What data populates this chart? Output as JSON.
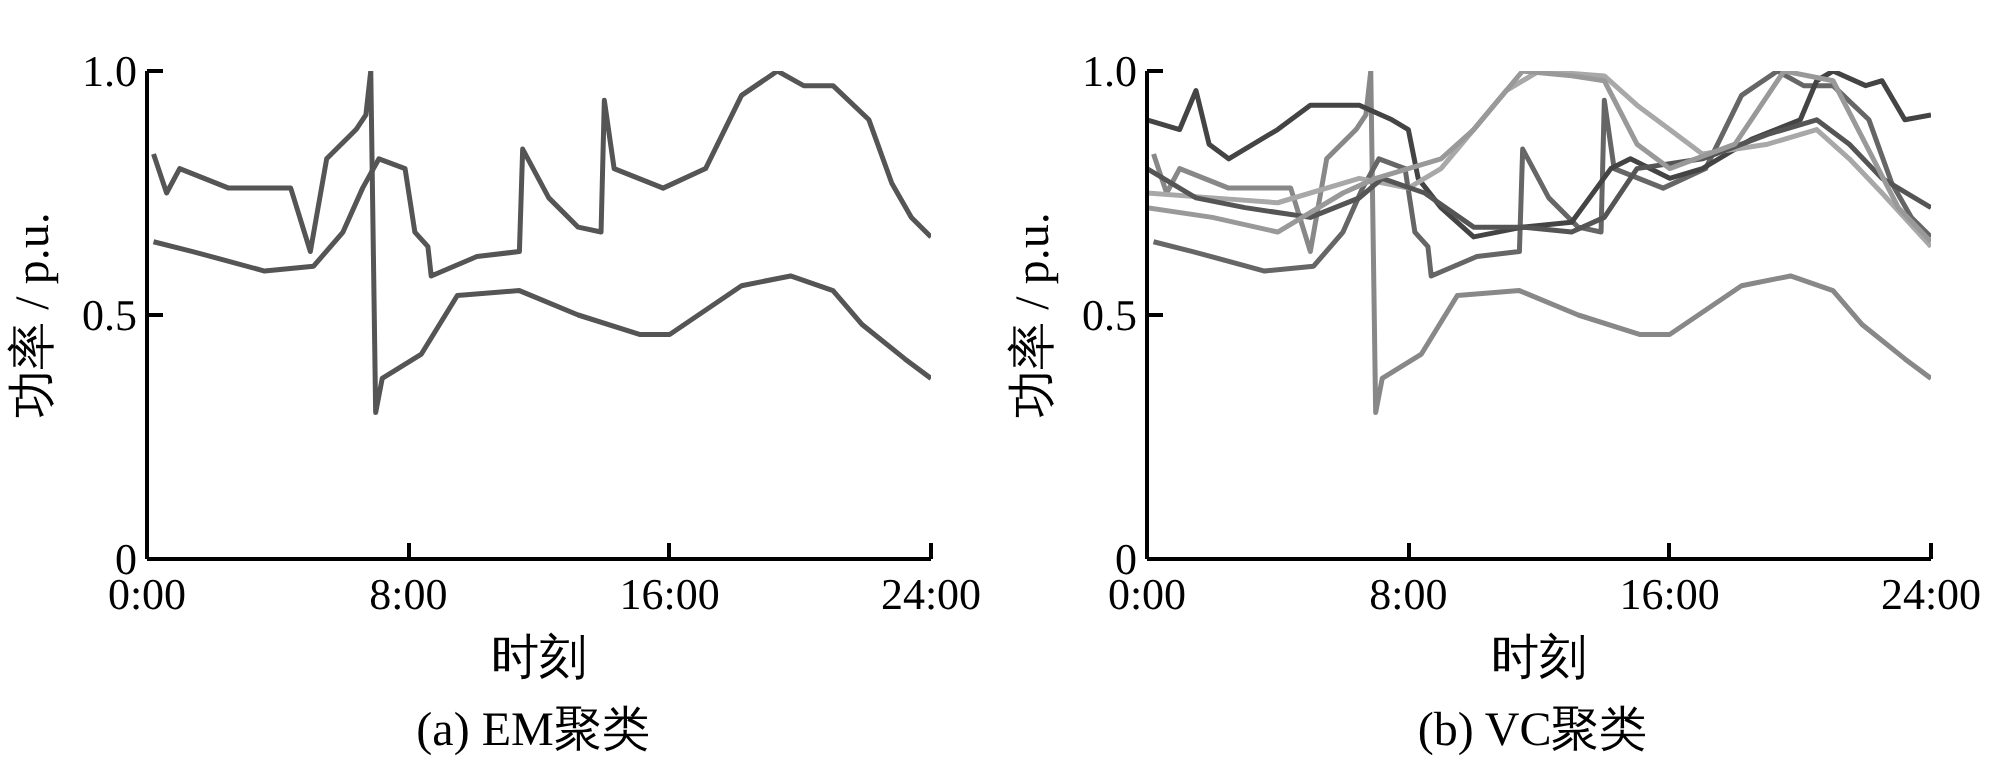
{
  "chart_data": [
    {
      "type": "line",
      "title": "(a)  EM聚类",
      "xlabel": "时刻",
      "ylabel": "功率 / p.u.",
      "xlim": [
        0,
        24
      ],
      "ylim": [
        0,
        1
      ],
      "xticks": [
        {
          "value": 0,
          "label": "0:00"
        },
        {
          "value": 8,
          "label": "8:00"
        },
        {
          "value": 16,
          "label": "16:00"
        },
        {
          "value": 24,
          "label": "24:00"
        }
      ],
      "yticks": [
        0,
        0.5,
        {
          "value": 1,
          "label": "1.0"
        }
      ],
      "grid": false,
      "line_style": "solid",
      "marker": "none",
      "series": [
        {
          "color": "#555555",
          "x": [
            0.2,
            0.6,
            1.0,
            2.5,
            4.4,
            5.0,
            5.5,
            6.4,
            6.7,
            6.85,
            7.0,
            7.2,
            8.4,
            9.5,
            11.4,
            13.2,
            15.1,
            16,
            18.2,
            19.7,
            21,
            21.9,
            23.2,
            24
          ],
          "values": [
            0.83,
            0.75,
            0.8,
            0.76,
            0.76,
            0.63,
            0.82,
            0.88,
            0.91,
            1.0,
            0.3,
            0.37,
            0.42,
            0.54,
            0.55,
            0.5,
            0.46,
            0.46,
            0.56,
            0.58,
            0.55,
            0.48,
            0.41,
            0.37
          ]
        },
        {
          "color": "#555555",
          "x": [
            0.2,
            1.4,
            3.6,
            5.1,
            6.0,
            6.6,
            7.1,
            7.9,
            8.2,
            8.6,
            8.7,
            10.1,
            11.4,
            11.5,
            12.3,
            13.2,
            13.9,
            14.0,
            14.3,
            15.8,
            17.1,
            18.2,
            19.3,
            20.1,
            21,
            22.1,
            22.8,
            23.4,
            24
          ],
          "values": [
            0.65,
            0.63,
            0.59,
            0.6,
            0.67,
            0.76,
            0.82,
            0.8,
            0.67,
            0.64,
            0.58,
            0.62,
            0.63,
            0.84,
            0.74,
            0.68,
            0.67,
            0.94,
            0.8,
            0.76,
            0.8,
            0.95,
            1.0,
            0.97,
            0.97,
            0.9,
            0.77,
            0.7,
            0.66
          ]
        }
      ]
    },
    {
      "type": "line",
      "title": "(b)  VC聚类",
      "xlabel": "时刻",
      "ylabel": "功率 / p.u.",
      "xlim": [
        0,
        24
      ],
      "ylim": [
        0,
        1
      ],
      "xticks": [
        {
          "value": 0,
          "label": "0:00"
        },
        {
          "value": 8,
          "label": "8:00"
        },
        {
          "value": 16,
          "label": "16:00"
        },
        {
          "value": 24,
          "label": "24:00"
        }
      ],
      "yticks": [
        0,
        0.5,
        {
          "value": 1,
          "label": "1.0"
        }
      ],
      "grid": false,
      "line_style": "solid",
      "marker": "none",
      "series": [
        {
          "color": "#888888",
          "x": [
            0.2,
            0.6,
            1.0,
            2.5,
            4.4,
            5.0,
            5.5,
            6.4,
            6.7,
            6.85,
            7.0,
            7.2,
            8.4,
            9.5,
            11.4,
            13.2,
            15.1,
            16,
            18.2,
            19.7,
            21,
            21.9,
            23.2,
            24
          ],
          "values": [
            0.83,
            0.75,
            0.8,
            0.76,
            0.76,
            0.63,
            0.82,
            0.88,
            0.91,
            1.0,
            0.3,
            0.37,
            0.42,
            0.54,
            0.55,
            0.5,
            0.46,
            0.46,
            0.56,
            0.58,
            0.55,
            0.48,
            0.41,
            0.37
          ]
        },
        {
          "color": "#666666",
          "x": [
            0.2,
            1.4,
            3.6,
            5.1,
            6.0,
            6.6,
            7.1,
            7.9,
            8.2,
            8.6,
            8.7,
            10.1,
            11.4,
            11.5,
            12.3,
            13.2,
            13.9,
            14.0,
            14.3,
            15.8,
            17.1,
            18.2,
            19.3,
            20.1,
            21,
            22.1,
            22.8,
            23.4,
            24
          ],
          "values": [
            0.65,
            0.63,
            0.59,
            0.6,
            0.67,
            0.76,
            0.82,
            0.8,
            0.67,
            0.64,
            0.58,
            0.62,
            0.63,
            0.84,
            0.74,
            0.68,
            0.67,
            0.94,
            0.8,
            0.76,
            0.8,
            0.95,
            1.0,
            0.97,
            0.97,
            0.9,
            0.77,
            0.7,
            0.66
          ]
        },
        {
          "color": "#444444",
          "x": [
            0,
            1.0,
            1.5,
            1.9,
            2.5,
            4.0,
            5.0,
            6.5,
            7.5,
            8.0,
            8.3,
            9.0,
            10.0,
            11.5,
            13.0,
            14.2,
            14.8,
            16.0,
            17.0,
            18.5,
            20.0,
            20.5,
            21.0,
            22.0,
            22.5,
            23.2,
            24
          ],
          "values": [
            0.9,
            0.88,
            0.96,
            0.85,
            0.82,
            0.88,
            0.93,
            0.93,
            0.9,
            0.88,
            0.78,
            0.72,
            0.66,
            0.68,
            0.69,
            0.8,
            0.82,
            0.78,
            0.8,
            0.86,
            0.9,
            0.98,
            1.0,
            0.97,
            0.98,
            0.9,
            0.91
          ]
        },
        {
          "color": "#a8a8a8",
          "x": [
            0,
            2.0,
            4.0,
            6.5,
            8.0,
            9.0,
            10.0,
            11.0,
            12.0,
            14.0,
            15.0,
            16.0,
            17.0,
            19.0,
            20.5,
            21.5,
            22.5,
            24
          ],
          "values": [
            0.75,
            0.74,
            0.73,
            0.78,
            0.76,
            0.8,
            0.88,
            0.96,
            1.0,
            0.99,
            0.93,
            0.88,
            0.83,
            0.85,
            0.88,
            0.82,
            0.75,
            0.64
          ]
        },
        {
          "color": "#555555",
          "x": [
            0,
            1.5,
            3.0,
            5.0,
            6.5,
            7.2,
            8.5,
            10.0,
            11.5,
            13.0,
            14.0,
            15.0,
            17.0,
            19.0,
            20.5,
            21.5,
            22.5,
            24
          ],
          "values": [
            0.8,
            0.74,
            0.72,
            0.7,
            0.74,
            0.78,
            0.75,
            0.68,
            0.68,
            0.67,
            0.7,
            0.8,
            0.82,
            0.87,
            0.9,
            0.85,
            0.78,
            0.72
          ]
        },
        {
          "color": "#999999",
          "x": [
            0,
            2.0,
            4.0,
            6.0,
            7.0,
            8.0,
            9.0,
            10.0,
            11.5,
            13.0,
            14.0,
            15.0,
            16.0,
            18.0,
            19.5,
            21.0,
            22.0,
            23.0,
            24
          ],
          "values": [
            0.72,
            0.7,
            0.67,
            0.75,
            0.78,
            0.8,
            0.82,
            0.88,
            1.0,
            0.99,
            0.98,
            0.85,
            0.8,
            0.85,
            1.0,
            0.98,
            0.85,
            0.72,
            0.65
          ]
        }
      ]
    }
  ]
}
